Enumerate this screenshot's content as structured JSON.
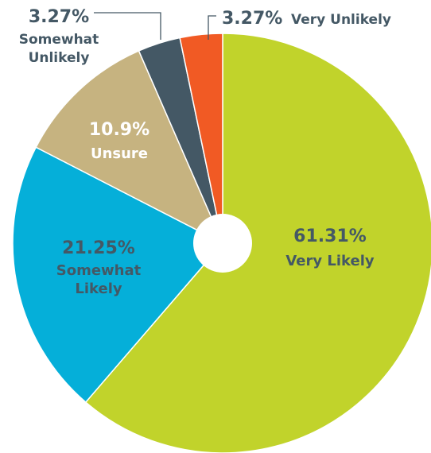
{
  "chart_data": {
    "type": "pie",
    "title": "",
    "start": "12 o'clock",
    "direction": "clockwise",
    "center_hole": true,
    "slices": [
      {
        "label": "Very Likely",
        "pct_text": "61.31%",
        "value": 61.31,
        "color": "#c1d32b"
      },
      {
        "label_lines": [
          "Somewhat",
          "Likely"
        ],
        "label": "Somewhat Likely",
        "pct_text": "21.25%",
        "value": 21.25,
        "color": "#05afd9"
      },
      {
        "label": "Unsure",
        "pct_text": "10.9%",
        "value": 10.9,
        "color": "#c6b380"
      },
      {
        "label_lines": [
          "Somewhat",
          "Unlikely"
        ],
        "label": "Somewhat Unlikely",
        "pct_text": "3.27%",
        "value": 3.27,
        "color": "#445865"
      },
      {
        "label": "Very Unlikely",
        "pct_text": "3.27%",
        "value": 3.27,
        "color": "#f15a24"
      }
    ],
    "colors": {
      "dark_label": "#445865",
      "light_label": "#ffffff",
      "leader": "#445865"
    }
  }
}
